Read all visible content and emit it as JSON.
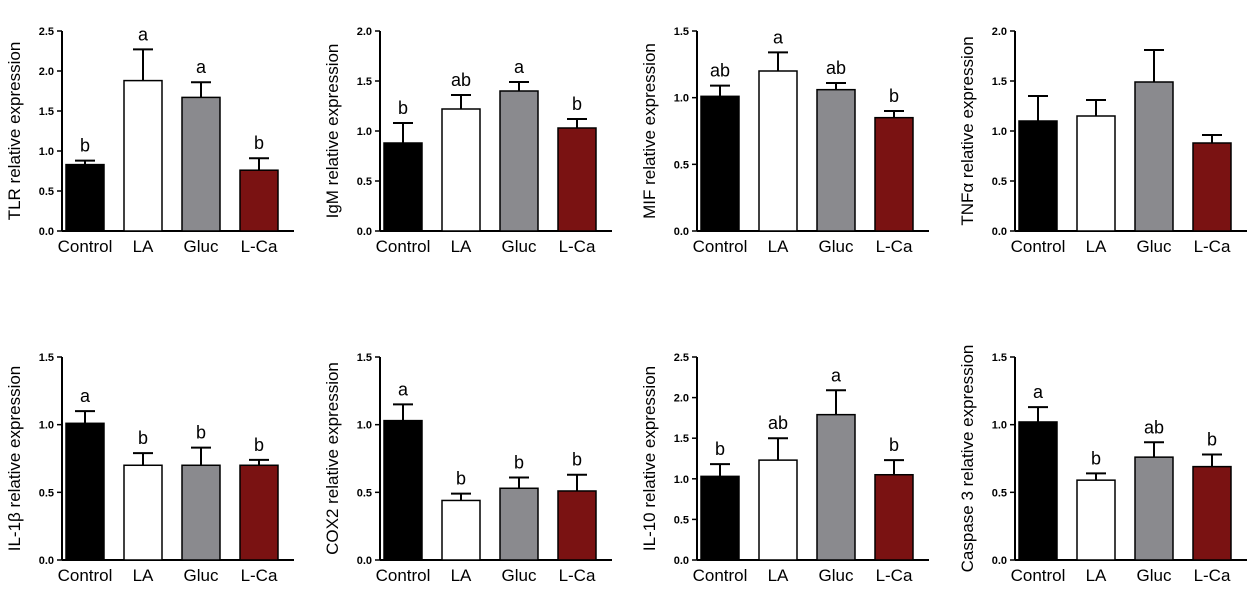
{
  "colors": {
    "Control": "#000000",
    "LA": "#ffffff",
    "Gluc": "#8a8a8e",
    "L-Ca": "#7a1212",
    "axis": "#000000"
  },
  "chart_data": [
    {
      "type": "bar",
      "categories": [
        "Control",
        "LA",
        "Gluc",
        "L-Ca"
      ],
      "ylabel": "TLR relative expression",
      "ylim": [
        0,
        2.5
      ],
      "yticks": [
        "0.0",
        "0.5",
        "1.0",
        "1.5",
        "2.0",
        "2.5"
      ],
      "values": [
        0.83,
        1.88,
        1.67,
        0.76
      ],
      "errors": [
        0.05,
        0.39,
        0.19,
        0.15
      ],
      "sig": [
        "b",
        "a",
        "a",
        "b"
      ]
    },
    {
      "type": "bar",
      "categories": [
        "Control",
        "LA",
        "Gluc",
        "L-Ca"
      ],
      "ylabel": "IgM relative expression",
      "ylim": [
        0,
        2.0
      ],
      "yticks": [
        "0.0",
        "0.5",
        "1.0",
        "1.5",
        "2.0"
      ],
      "values": [
        0.88,
        1.22,
        1.4,
        1.03
      ],
      "errors": [
        0.2,
        0.14,
        0.09,
        0.09
      ],
      "sig": [
        "b",
        "ab",
        "a",
        "b"
      ]
    },
    {
      "type": "bar",
      "categories": [
        "Control",
        "LA",
        "Gluc",
        "L-Ca"
      ],
      "ylabel": "MIF relative expression",
      "ylim": [
        0,
        1.5
      ],
      "yticks": [
        "0.0",
        "0.5",
        "1.0",
        "1.5"
      ],
      "values": [
        1.01,
        1.2,
        1.06,
        0.85
      ],
      "errors": [
        0.08,
        0.14,
        0.05,
        0.05
      ],
      "sig": [
        "ab",
        "a",
        "ab",
        "b"
      ]
    },
    {
      "type": "bar",
      "categories": [
        "Control",
        "LA",
        "Gluc",
        "L-Ca"
      ],
      "ylabel": "TNFα relative expression",
      "ylim": [
        0,
        2.0
      ],
      "yticks": [
        "0.0",
        "0.5",
        "1.0",
        "1.5",
        "2.0"
      ],
      "values": [
        1.1,
        1.15,
        1.49,
        0.88
      ],
      "errors": [
        0.25,
        0.16,
        0.32,
        0.08
      ],
      "sig": [
        "",
        "",
        "",
        ""
      ]
    },
    {
      "type": "bar",
      "categories": [
        "Control",
        "LA",
        "Gluc",
        "L-Ca"
      ],
      "ylabel": "IL-1β relative expression",
      "ylim": [
        0,
        1.5
      ],
      "yticks": [
        "0.0",
        "0.5",
        "1.0",
        "1.5"
      ],
      "values": [
        1.01,
        0.7,
        0.7,
        0.7
      ],
      "errors": [
        0.09,
        0.09,
        0.13,
        0.04
      ],
      "sig": [
        "a",
        "b",
        "b",
        "b"
      ]
    },
    {
      "type": "bar",
      "categories": [
        "Control",
        "LA",
        "Gluc",
        "L-Ca"
      ],
      "ylabel": "COX2 relative expression",
      "ylim": [
        0,
        1.5
      ],
      "yticks": [
        "0.0",
        "0.5",
        "1.0",
        "1.5"
      ],
      "values": [
        1.03,
        0.44,
        0.53,
        0.51
      ],
      "errors": [
        0.12,
        0.05,
        0.08,
        0.12
      ],
      "sig": [
        "a",
        "b",
        "b",
        "b"
      ]
    },
    {
      "type": "bar",
      "categories": [
        "Control",
        "LA",
        "Gluc",
        "L-Ca"
      ],
      "ylabel": "IL-10 relative expression",
      "ylim": [
        0,
        2.5
      ],
      "yticks": [
        "0.0",
        "0.5",
        "1.0",
        "1.5",
        "2.0",
        "2.5"
      ],
      "values": [
        1.03,
        1.23,
        1.79,
        1.05
      ],
      "errors": [
        0.15,
        0.27,
        0.3,
        0.18
      ],
      "sig": [
        "b",
        "ab",
        "a",
        "b"
      ]
    },
    {
      "type": "bar",
      "categories": [
        "Control",
        "LA",
        "Gluc",
        "L-Ca"
      ],
      "ylabel": "Caspase 3 relative expression",
      "ylim": [
        0,
        1.5
      ],
      "yticks": [
        "0.0",
        "0.5",
        "1.0",
        "1.5"
      ],
      "values": [
        1.02,
        0.59,
        0.76,
        0.69
      ],
      "errors": [
        0.11,
        0.05,
        0.11,
        0.09
      ],
      "sig": [
        "a",
        "b",
        "ab",
        "b"
      ]
    }
  ]
}
